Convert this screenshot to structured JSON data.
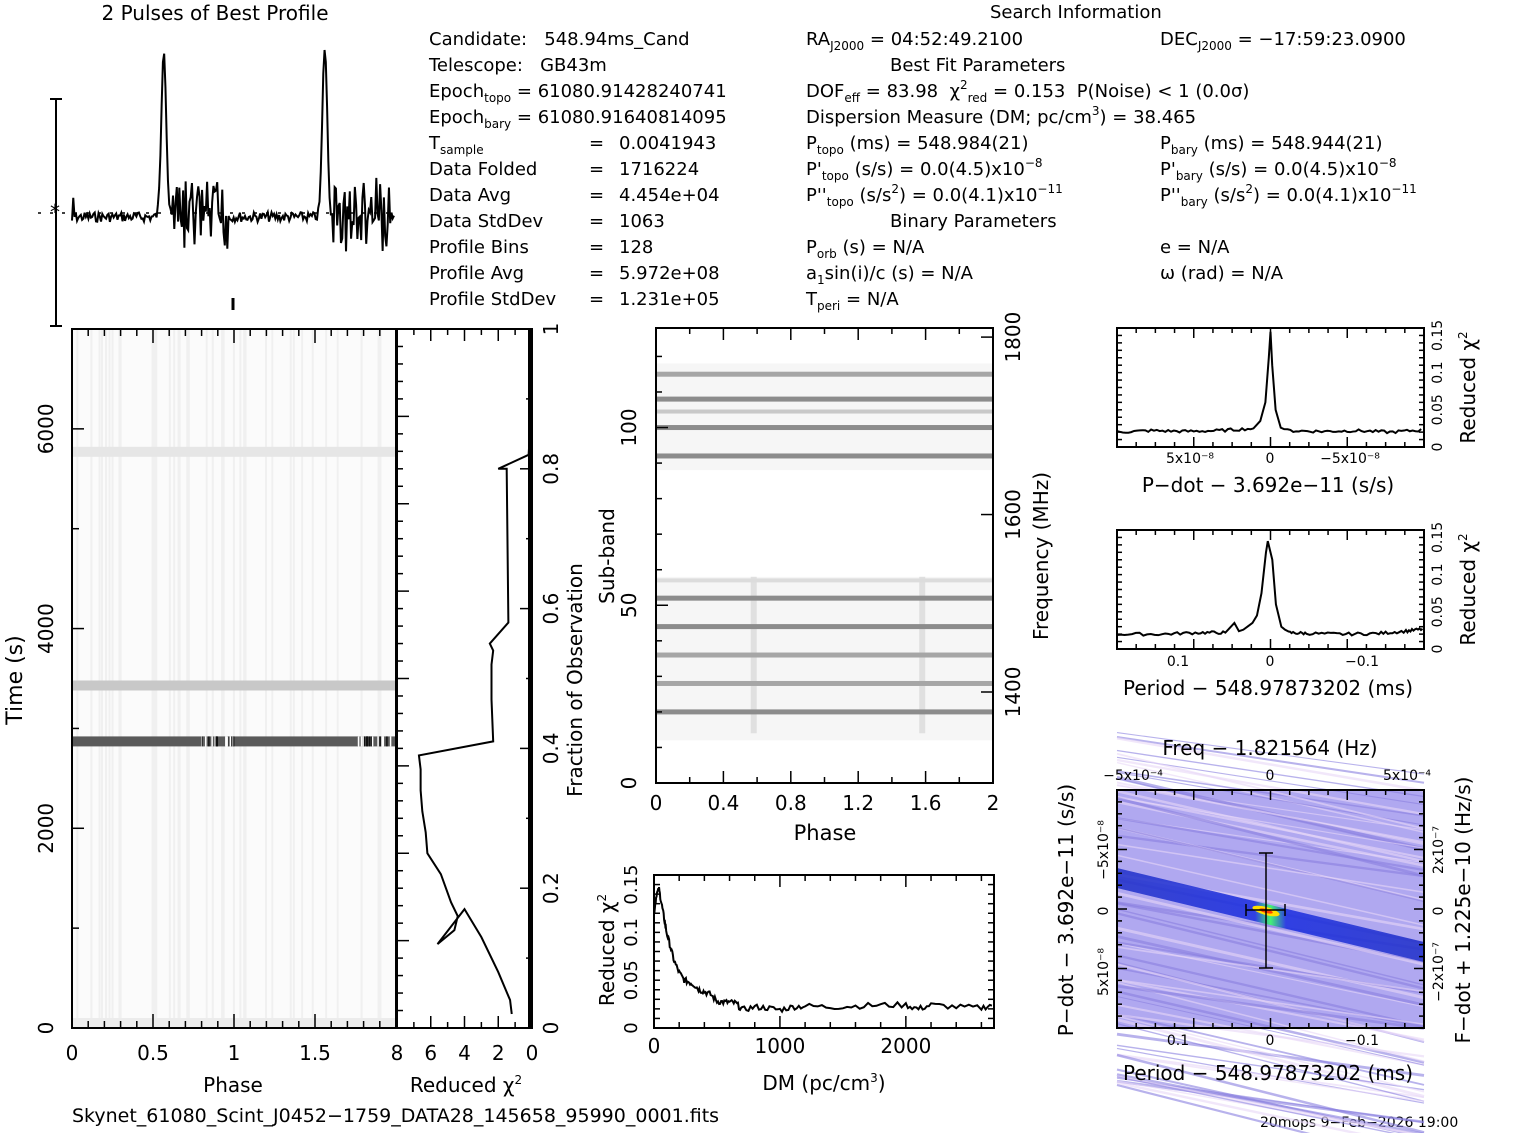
{
  "info": {
    "candidate_label": "Candidate:",
    "candidate": "548.94ms_Cand",
    "telescope_label": "Telescope:",
    "telescope": "GB43m",
    "epoch_topo_label": "Epoch",
    "epoch_topo_sub": "topo",
    "epoch_topo": "61080.91428240741",
    "epoch_bary_label": "Epoch",
    "epoch_bary_sub": "bary",
    "epoch_bary": "61080.91640814095",
    "tsample_label": "T",
    "tsample_sub": "sample",
    "tsample": "0.0041943",
    "data_folded_label": "Data Folded",
    "data_folded": "1716224",
    "data_avg_label": "Data Avg",
    "data_avg": "4.454e+04",
    "data_stddev_label": "Data StdDev",
    "data_stddev": "1063",
    "profile_bins_label": "Profile Bins",
    "profile_bins": "128",
    "profile_avg_label": "Profile Avg",
    "profile_avg": "5.972e+08",
    "profile_stddev_label": "Profile StdDev",
    "profile_stddev": "1.231e+05",
    "equals": "="
  },
  "search": {
    "title": "Search Information",
    "ra_label": "RA",
    "ra_sub": "J2000",
    "ra": "04:52:49.2100",
    "dec_label": "DEC",
    "dec_sub": "J2000",
    "dec": "−17:59:23.0900",
    "best_fit_title": "Best Fit Parameters",
    "dof_label": "DOF",
    "dof_sub": "eff",
    "dof": "83.98",
    "chi_label": "χ",
    "chi_sup": "2",
    "chi_sub": "red",
    "chi": "0.153",
    "pnoise": "P(Noise) < 1   (0.0σ)",
    "dm_text": "Dispersion Measure (DM; pc/cm",
    "dm_sup": "3",
    "dm_value": ") = 38.465",
    "ptopo_label": "P",
    "ptopo_sub": "topo",
    "ptopo": "(ms) =  548.984(21)",
    "pbary_label": "P",
    "pbary_sub": "bary",
    "pbary": "(ms) =  548.944(21)",
    "pdtopo_label": "P'",
    "pdtopo_sub": "topo",
    "pdtopo": "(s/s) = 0.0(4.5)x10",
    "pdtopo_exp": "−8",
    "pdbary_label": "P'",
    "pdbary_sub": "bary",
    "pdbary": "(s/s) = 0.0(4.5)x10",
    "pdbary_exp": "−8",
    "pddtopo_label": "P''",
    "pddtopo_sub": "topo",
    "pddtopo_a": "(s/s",
    "pddtopo_sup": "2",
    "pddtopo_b": ") = 0.0(4.1)x10",
    "pddtopo_exp": "−11",
    "pddbary_label": "P''",
    "pddbary_sub": "bary",
    "pddbary_a": "(s/s",
    "pddbary_sup": "2",
    "pddbary_b": ") = 0.0(4.1)x10",
    "pddbary_exp": "−11",
    "binary_title": "Binary Parameters",
    "porb_label": "P",
    "porb_sub": "orb",
    "porb": "(s) = N/A",
    "e": "e = N/A",
    "a1_a": "a",
    "a1_sub": "1",
    "a1_b": "sin(i)/c (s) = N/A",
    "omega": "ω (rad) = N/A",
    "tperi_label": "T",
    "tperi_sub": "peri",
    "tperi": "= N/A"
  },
  "footer": {
    "filename": "Skynet_61080_Scint_J0452−1759_DATA28_145658_95990_0001.fits",
    "stamp": "20mops   9−Feb−2026 19:00"
  },
  "chart_data": [
    {
      "id": "profile",
      "type": "line",
      "title": "2 Pulses of Best Profile",
      "xlabel": "",
      "ylabel": "",
      "xlim": [
        0,
        2
      ],
      "pulse_peaks_phase": [
        0.57,
        1.57
      ],
      "note": "two pulses of the folded profile, baseline with noise"
    },
    {
      "id": "time-phase",
      "type": "heatmap",
      "xlabel": "Phase",
      "ylabel": "Time (s)",
      "xlim": [
        0,
        2
      ],
      "ylim": [
        0,
        7000
      ],
      "xticks": [
        "0",
        "0.5",
        "1",
        "1.5"
      ],
      "yticks": [
        "0",
        "2000",
        "4000",
        "6000"
      ],
      "bright_rows_time_s": [
        2870,
        3430,
        5770
      ]
    },
    {
      "id": "redchi-vs-time",
      "type": "line",
      "xlabel": "Reduced χ",
      "xlabel_sup": "2",
      "ylabel": "Fraction of Observation",
      "xlim": [
        8,
        0
      ],
      "ylim": [
        0,
        1
      ],
      "xticks": [
        "8",
        "6",
        "4",
        "2",
        "0"
      ],
      "yticks": [
        "0",
        "0.2",
        "0.4",
        "0.6",
        "0.8",
        "1"
      ],
      "x": [
        1.2,
        1.3,
        2.0,
        3.0,
        4.0,
        5.6,
        4.6,
        4.4,
        4.8,
        5.4,
        6.2,
        6.3,
        6.5,
        6.6,
        6.6,
        6.7,
        2.3,
        2.4,
        2.4,
        2.3,
        2.5,
        1.4,
        1.5,
        2.0,
        0.2,
        0.0,
        0.0
      ],
      "y": [
        0.02,
        0.04,
        0.08,
        0.13,
        0.17,
        0.12,
        0.14,
        0.16,
        0.18,
        0.22,
        0.25,
        0.28,
        0.31,
        0.34,
        0.37,
        0.39,
        0.41,
        0.47,
        0.52,
        0.54,
        0.55,
        0.58,
        0.8,
        0.8,
        0.82,
        0.9,
        1.0
      ]
    },
    {
      "id": "subband-phase",
      "type": "heatmap",
      "xlabel": "Phase",
      "ylabel": "Sub-band",
      "y2label": "Frequency (MHz)",
      "xlim": [
        0,
        2
      ],
      "ylim": [
        0,
        128
      ],
      "xticks": [
        "0",
        "0.4",
        "0.8",
        "1.2",
        "1.6",
        "2"
      ],
      "yticks": [
        "0",
        "50",
        "100"
      ],
      "y2ticks": [
        "1400",
        "1600",
        "1800"
      ],
      "bright_subbands": [
        20,
        28,
        36,
        44,
        52,
        92,
        100,
        108,
        115
      ]
    },
    {
      "id": "redchi-vs-dm",
      "type": "line",
      "xlabel": "DM (pc/cm",
      "xlabel_sup": "3",
      "ylabel": "Reduced χ",
      "ylabel_sup": "2",
      "xlim": [
        0,
        2700
      ],
      "ylim": [
        0,
        0.16
      ],
      "xticks": [
        "0",
        "1000",
        "2000"
      ],
      "yticks": [
        "0",
        "0.05",
        "0.1",
        "0.15"
      ],
      "x": [
        0,
        20,
        40,
        60,
        80,
        100,
        130,
        160,
        200,
        240,
        280,
        320,
        360,
        400,
        450,
        500,
        550,
        600,
        650,
        700,
        800,
        900,
        1000,
        1100,
        1200,
        1400,
        1600,
        1800,
        2000,
        2100,
        2200,
        2400,
        2600,
        2700
      ],
      "y": [
        0.12,
        0.14,
        0.145,
        0.13,
        0.115,
        0.1,
        0.085,
        0.07,
        0.058,
        0.05,
        0.048,
        0.045,
        0.04,
        0.038,
        0.035,
        0.028,
        0.027,
        0.027,
        0.026,
        0.019,
        0.022,
        0.021,
        0.019,
        0.022,
        0.023,
        0.022,
        0.023,
        0.024,
        0.024,
        0.02,
        0.024,
        0.022,
        0.021,
        0.025
      ]
    },
    {
      "id": "redchi-vs-pdot",
      "type": "line",
      "xlabel": "P−dot − 3.692e−11 (s/s)",
      "ylabel": "Reduced χ",
      "ylabel_sup": "2",
      "xlim": [
        9e-08,
        -9e-08
      ],
      "ylim": [
        0,
        0.16
      ],
      "xticks": [
        "5x10⁻⁸",
        "0",
        "−5x10⁻⁸"
      ],
      "yticks": [
        "0",
        "0.05",
        "0.1",
        "0.15"
      ],
      "x": [
        9e-08,
        7e-08,
        5e-08,
        3e-08,
        1e-08,
        6e-09,
        3e-09,
        1e-09,
        0,
        -1e-09,
        -3e-09,
        -6e-09,
        -1e-08,
        -3e-08,
        -5e-08,
        -7e-08,
        -9e-08
      ],
      "y": [
        0.02,
        0.022,
        0.021,
        0.022,
        0.025,
        0.035,
        0.06,
        0.12,
        0.155,
        0.11,
        0.05,
        0.026,
        0.022,
        0.021,
        0.022,
        0.02,
        0.023
      ]
    },
    {
      "id": "redchi-vs-period",
      "type": "line",
      "xlabel": "Period − 548.97873202 (ms)",
      "ylabel": "Reduced χ",
      "ylabel_sup": "2",
      "xlim": [
        0.17,
        -0.17
      ],
      "ylim": [
        0,
        0.16
      ],
      "xticks": [
        "0.1",
        "0",
        "−0.1"
      ],
      "yticks": [
        "0",
        "0.05",
        "0.1",
        "0.15"
      ],
      "x": [
        0.17,
        0.12,
        0.08,
        0.05,
        0.04,
        0.035,
        0.03,
        0.02,
        0.015,
        0.01,
        0.005,
        0.003,
        -0.002,
        -0.006,
        -0.012,
        -0.02,
        -0.04,
        -0.08,
        -0.12,
        -0.15,
        -0.17
      ],
      "y": [
        0.02,
        0.02,
        0.022,
        0.022,
        0.035,
        0.024,
        0.026,
        0.035,
        0.045,
        0.075,
        0.13,
        0.145,
        0.12,
        0.06,
        0.03,
        0.022,
        0.021,
        0.02,
        0.021,
        0.024,
        0.027
      ]
    },
    {
      "id": "ppdot-plane",
      "type": "heatmap",
      "title": "Freq − 1.821564 (Hz)",
      "xlabel": "Period − 548.97873202 (ms)",
      "ylabel": "P−dot − 3.692e−11 (s/s)",
      "y2label": "F−dot + 1.225e−10 (Hz/s)",
      "xlim": [
        0.17,
        -0.17
      ],
      "ylim": [
        9e-08,
        -9e-08
      ],
      "xticks": [
        "0.1",
        "0",
        "−0.1"
      ],
      "x2ticks": [
        "−5x10⁻⁴",
        "0",
        "5x10⁻⁴"
      ],
      "yticks": [
        "−5x10⁻⁸",
        "0",
        "5x10⁻⁸"
      ],
      "y2ticks": [
        "2x10⁻⁷",
        "0",
        "−2x10⁻⁷"
      ],
      "best_fit": {
        "period_offset_ms": 0.005,
        "pdot_offset": 0
      },
      "errorbar": {
        "period_half_ms": 0.022,
        "pdot_half": 4.5e-08
      }
    }
  ]
}
